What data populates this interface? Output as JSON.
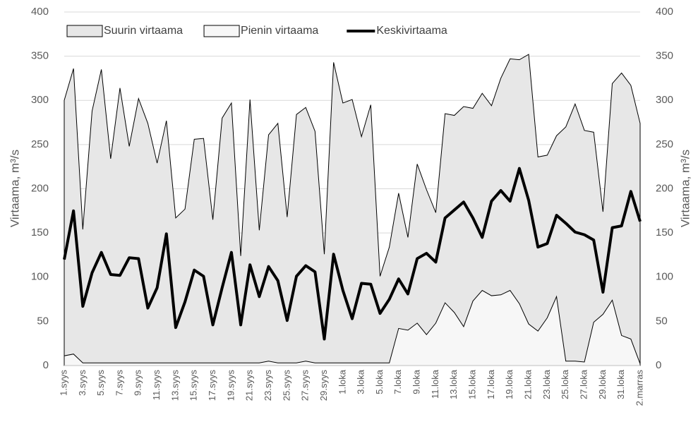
{
  "chart_data": {
    "type": "area",
    "ylabel": "Virtaama, m³/s",
    "y2label": "Virtaama, m³/s",
    "categories": [
      "1.syys",
      null,
      "3.syys",
      null,
      "5.syys",
      null,
      "7.syys",
      null,
      "9.syys",
      null,
      "11.syys",
      null,
      "13.syys",
      null,
      "15.syys",
      null,
      "17.syys",
      null,
      "19.syys",
      null,
      "21.syys",
      null,
      "23.syys",
      null,
      "25.syys",
      null,
      "27.syys",
      null,
      "29.syys",
      null,
      "1.loka",
      null,
      "3.loka",
      null,
      "5.loka",
      null,
      "7.loka",
      null,
      "9.loka",
      null,
      "11.loka",
      null,
      "13.loka",
      null,
      "15.loka",
      null,
      "17.loka",
      null,
      "19.loka",
      null,
      "21.loka",
      null,
      "23.loka",
      null,
      "25.loka",
      null,
      "27.loka",
      null,
      "29.loka",
      null,
      "31.loka",
      null,
      "2.marras"
    ],
    "series": [
      {
        "name": "Suurin virtaama",
        "kind": "area",
        "color": "#e7e7e7",
        "values": [
          300,
          336,
          154,
          288,
          335,
          234,
          314,
          248,
          302,
          274,
          229,
          277,
          167,
          177,
          256,
          257,
          165,
          280,
          297,
          124,
          301,
          153,
          261,
          274,
          168,
          284,
          292,
          265,
          126,
          343,
          297,
          301,
          259,
          295,
          101,
          134,
          195,
          145,
          228,
          199,
          173,
          285,
          283,
          293,
          291,
          308,
          294,
          325,
          347,
          346,
          352,
          236,
          238,
          260,
          270,
          296,
          266,
          264,
          174,
          319,
          331,
          317,
          274
        ]
      },
      {
        "name": "Pienin virtaama",
        "kind": "area",
        "color": "#f7f7f7",
        "values": [
          11,
          13,
          3,
          3,
          3,
          3,
          3,
          3,
          3,
          3,
          3,
          3,
          3,
          3,
          3,
          3,
          3,
          3,
          3,
          3,
          3,
          3,
          5,
          3,
          3,
          3,
          5,
          3,
          3,
          3,
          3,
          3,
          3,
          3,
          3,
          3,
          42,
          40,
          48,
          35,
          48,
          71,
          60,
          44,
          73,
          85,
          79,
          80,
          85,
          70,
          47,
          39,
          54,
          78,
          5,
          5,
          4,
          49,
          58,
          74,
          34,
          30,
          2
        ]
      },
      {
        "name": "Keskivirtaama",
        "kind": "line",
        "color": "#000000",
        "values": [
          120,
          175,
          67,
          105,
          128,
          103,
          102,
          122,
          121,
          65,
          88,
          149,
          43,
          72,
          108,
          101,
          46,
          88,
          128,
          46,
          114,
          78,
          112,
          96,
          51,
          101,
          113,
          106,
          30,
          126,
          85,
          53,
          93,
          92,
          59,
          75,
          98,
          81,
          121,
          127,
          117,
          167,
          176,
          185,
          167,
          145,
          186,
          198,
          186,
          223,
          187,
          134,
          138,
          170,
          161,
          151,
          148,
          142,
          83,
          156,
          158,
          197,
          163
        ]
      }
    ],
    "ylim": [
      0,
      400
    ],
    "yticks": [
      0,
      50,
      100,
      150,
      200,
      250,
      300,
      350,
      400
    ],
    "y2lim": [
      0,
      400
    ],
    "y2ticks": [
      0,
      50,
      100,
      150,
      200,
      250,
      300,
      350,
      400
    ],
    "grid": true,
    "legend": "top-left"
  }
}
